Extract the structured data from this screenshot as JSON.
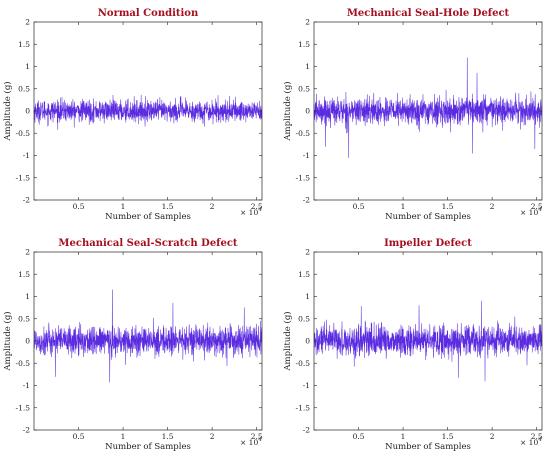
{
  "colors": {
    "signal": "#5a2be0",
    "title": "#a50f1e",
    "axis": "#262626"
  },
  "chart_data": [
    {
      "type": "line",
      "title": "Normal Condition",
      "xlabel": "Number of Samples",
      "ylabel": "Amplitude (g)",
      "x_multiplier": "× 10^4",
      "x_multiplier_base": "× 10",
      "x_multiplier_exp": "4",
      "xlim": [
        0,
        25600
      ],
      "ylim": [
        -2,
        2
      ],
      "x_ticks": [
        5000,
        10000,
        15000,
        20000,
        25000
      ],
      "x_tick_labels": [
        "0.5",
        "1",
        "1.5",
        "2",
        "2.5"
      ],
      "y_ticks": [
        2,
        1.5,
        1,
        0.5,
        0,
        -0.5,
        -1,
        -1.5,
        -2
      ],
      "y_tick_labels": [
        "2",
        "1.5",
        "1",
        "0.5",
        "0",
        "-0.5",
        "-1",
        "-1.5",
        "-2"
      ],
      "grid": false,
      "series": [
        {
          "n_samples": 25600,
          "mean": 0.0,
          "rms": 0.12,
          "peak_max": 0.7,
          "peak_min": -0.75,
          "spikes": []
        }
      ]
    },
    {
      "type": "line",
      "title": "Mechanical Seal-Hole Defect",
      "xlabel": "Number of Samples",
      "ylabel": "Amplitude (g)",
      "x_multiplier": "× 10^4",
      "x_multiplier_base": "× 10",
      "x_multiplier_exp": "4",
      "xlim": [
        0,
        25600
      ],
      "ylim": [
        -2,
        2
      ],
      "x_ticks": [
        5000,
        10000,
        15000,
        20000,
        25000
      ],
      "x_tick_labels": [
        "0.5",
        "1",
        "1.5",
        "2",
        "2.5"
      ],
      "y_ticks": [
        2,
        1.5,
        1,
        0.5,
        0,
        -0.5,
        -1,
        -1.5,
        -2
      ],
      "y_tick_labels": [
        "2",
        "1.5",
        "1",
        "0.5",
        "0",
        "-0.5",
        "-1",
        "-1.5",
        "-2"
      ],
      "grid": false,
      "series": [
        {
          "n_samples": 25600,
          "mean": 0.0,
          "rms": 0.15,
          "peak_max": 1.2,
          "peak_min": -1.05,
          "spikes": [
            [
              17200,
              1.2
            ],
            [
              3900,
              -1.05
            ],
            [
              17800,
              -0.95
            ],
            [
              1300,
              -0.8
            ],
            [
              18300,
              0.85
            ],
            [
              24800,
              -0.85
            ]
          ]
        }
      ]
    },
    {
      "type": "line",
      "title": "Mechanical Seal-Scratch Defect",
      "xlabel": "Number of Samples",
      "ylabel": "Amplitude (g)",
      "x_multiplier": "× 10^4",
      "x_multiplier_base": "× 10",
      "x_multiplier_exp": "4",
      "xlim": [
        0,
        25600
      ],
      "ylim": [
        -2,
        2
      ],
      "x_ticks": [
        5000,
        10000,
        15000,
        20000,
        25000
      ],
      "x_tick_labels": [
        "0.5",
        "1",
        "1.5",
        "2",
        "2.5"
      ],
      "y_ticks": [
        2,
        1.5,
        1,
        0.5,
        0,
        -0.5,
        -1,
        -1.5,
        -2
      ],
      "y_tick_labels": [
        "2",
        "1.5",
        "1",
        "0.5",
        "0",
        "-0.5",
        "-1",
        "-1.5",
        "-2"
      ],
      "grid": false,
      "series": [
        {
          "n_samples": 25600,
          "mean": 0.0,
          "rms": 0.16,
          "peak_max": 1.15,
          "peak_min": -0.95,
          "spikes": [
            [
              8800,
              1.15
            ],
            [
              8500,
              -0.92
            ],
            [
              15600,
              0.85
            ],
            [
              23600,
              0.75
            ],
            [
              2400,
              -0.8
            ]
          ]
        }
      ]
    },
    {
      "type": "line",
      "title": "Impeller Defect",
      "xlabel": "Number of Samples",
      "ylabel": "Amplitude (g)",
      "x_multiplier": "× 10^4",
      "x_multiplier_base": "× 10",
      "x_multiplier_exp": "4",
      "xlim": [
        0,
        25600
      ],
      "ylim": [
        -2,
        2
      ],
      "x_ticks": [
        5000,
        10000,
        15000,
        20000,
        25000
      ],
      "x_tick_labels": [
        "0.5",
        "1",
        "1.5",
        "2",
        "2.5"
      ],
      "y_ticks": [
        2,
        1.5,
        1,
        0.5,
        0,
        -0.5,
        -1,
        -1.5,
        -2
      ],
      "y_tick_labels": [
        "2",
        "1.5",
        "1",
        "0.5",
        "0",
        "-0.5",
        "-1",
        "-1.5",
        "-2"
      ],
      "grid": false,
      "series": [
        {
          "n_samples": 25600,
          "mean": 0.0,
          "rms": 0.17,
          "peak_max": 0.9,
          "peak_min": -0.9,
          "spikes": [
            [
              18800,
              0.9
            ],
            [
              19200,
              -0.9
            ],
            [
              11800,
              0.8
            ],
            [
              16200,
              -0.82
            ],
            [
              5300,
              0.78
            ]
          ]
        }
      ]
    }
  ]
}
